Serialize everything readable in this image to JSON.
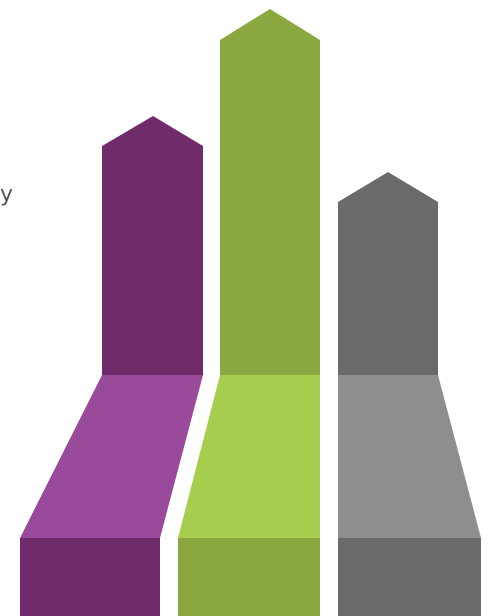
{
  "edge_text": "y",
  "arrows": [
    {
      "name": "purple",
      "colors": {
        "arrow": "#6f2b6a",
        "ramp": "#9a4a9a",
        "base": "#6f2b6a"
      }
    },
    {
      "name": "green",
      "colors": {
        "arrow": "#8aa83f",
        "ramp": "#a6cd4e",
        "base": "#8aa83f"
      }
    },
    {
      "name": "gray",
      "colors": {
        "arrow": "#6b6a6b",
        "ramp": "#8f8e8f",
        "base": "#6b6a6b"
      }
    }
  ]
}
